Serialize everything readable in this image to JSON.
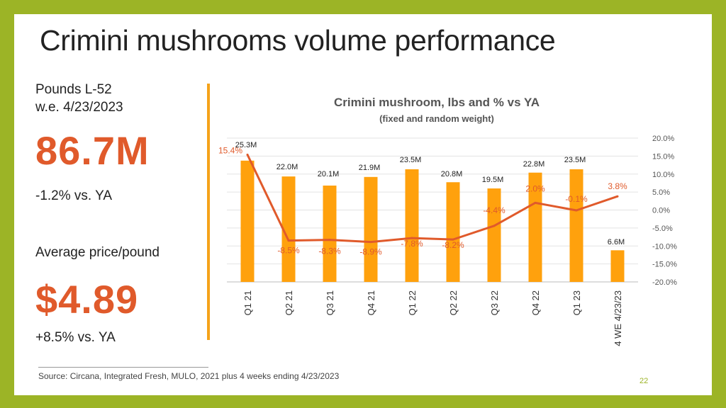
{
  "slide": {
    "title": "Crimini mushrooms volume performance",
    "pounds_label_line1": "Pounds L-52",
    "pounds_label_line2": "w.e. 4/23/2023",
    "pounds_value": "86.7M",
    "pounds_change": "-1.2% vs. YA",
    "price_label": "Average price/pound",
    "price_value": "$4.89",
    "price_change": "+8.5% vs. YA",
    "source": "Source: Circana, Integrated Fresh, MULO, 2021 plus 4 weeks ending 4/23/2023",
    "page_number": "22"
  },
  "colors": {
    "bar": "#ffa10d",
    "line": "#e05a2b",
    "accent": "#f5a31a",
    "frame": "#9cb426"
  },
  "chart_data": {
    "type": "bar+line",
    "title": "Crimini mushroom, lbs and % vs YA",
    "subtitle": "(fixed and random weight)",
    "categories": [
      "Q1 21",
      "Q2 21",
      "Q3 21",
      "Q4 21",
      "Q1 22",
      "Q2 22",
      "Q3 22",
      "Q4 22",
      "Q1 23",
      "4 WE 4/23/23"
    ],
    "series": [
      {
        "name": "lbs",
        "type": "bar",
        "values": [
          25.3,
          22.0,
          20.1,
          21.9,
          23.5,
          20.8,
          19.5,
          22.8,
          23.5,
          6.6
        ],
        "labels": [
          "25.3M",
          "22.0M",
          "20.1M",
          "21.9M",
          "23.5M",
          "20.8M",
          "19.5M",
          "22.8M",
          "23.5M",
          "6.6M"
        ]
      },
      {
        "name": "% vs YA",
        "type": "line",
        "axis": "right",
        "values": [
          15.4,
          -8.5,
          -8.3,
          -8.9,
          -7.8,
          -8.2,
          -4.4,
          2.0,
          -0.1,
          3.8
        ],
        "labels": [
          "15.4%",
          "-8.5%",
          "-8.3%",
          "-8.9%",
          "-7.8%",
          "-8.2%",
          "-4.4%",
          "2.0%",
          "-0.1%",
          "3.8%"
        ]
      }
    ],
    "left_ylim": [
      0,
      30
    ],
    "right_ylim": [
      -20,
      20
    ],
    "right_ticks": [
      "20.0%",
      "15.0%",
      "10.0%",
      "5.0%",
      "0.0%",
      "-5.0%",
      "-10.0%",
      "-15.0%",
      "-20.0%"
    ],
    "right_tick_values": [
      20,
      15,
      10,
      5,
      0,
      -5,
      -10,
      -15,
      -20
    ],
    "grid": true
  }
}
